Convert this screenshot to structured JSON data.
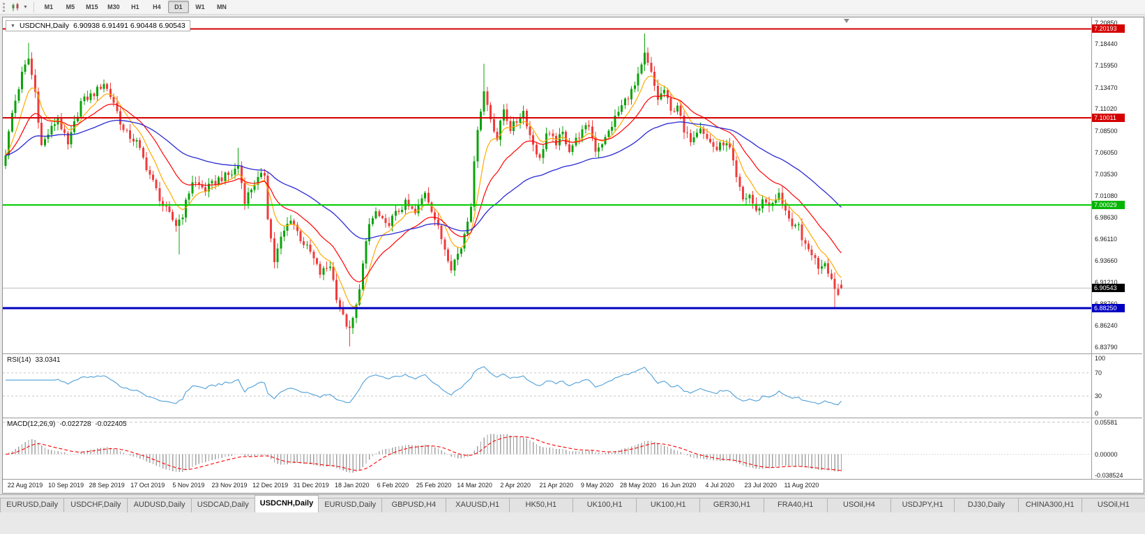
{
  "toolbar": {
    "timeframes": [
      "M1",
      "M5",
      "M15",
      "M30",
      "H1",
      "H4",
      "D1",
      "W1",
      "MN"
    ],
    "active_timeframe": "D1"
  },
  "chart": {
    "header": {
      "arrow": "▼",
      "title": "USDCNH,Daily",
      "ohlc": "6.90938 6.91491 6.90448 6.90543"
    },
    "colors": {
      "up": "#0aa30a",
      "down": "#f03c3c",
      "ma_fast": "#ffaa00",
      "ma_mid": "#ff0000",
      "ma_slow": "#2a2ad4"
    },
    "price_axis": {
      "min": 6.8307,
      "max": 7.2141,
      "labels": [
        "7.20850",
        "7.18440",
        "7.15950",
        "7.13470",
        "7.11020",
        "7.08500",
        "7.06050",
        "7.03530",
        "7.01080",
        "6.98630",
        "6.96110",
        "6.93660",
        "6.91210",
        "6.88760",
        "6.86240",
        "6.83790"
      ]
    },
    "markers": [
      {
        "name": "price-tag-resistance-upper",
        "text": "7.20193",
        "price": 7.20193,
        "bg": "#d40000",
        "fg": "#ffffff"
      },
      {
        "name": "price-tag-resistance",
        "text": "7.10011",
        "price": 7.10011,
        "bg": "#d40000",
        "fg": "#ffffff"
      },
      {
        "name": "price-tag-pivot",
        "text": "7.00029",
        "price": 7.00029,
        "bg": "#00b400",
        "fg": "#ffffff"
      },
      {
        "name": "price-tag-support",
        "text": "6.88250",
        "price": 6.8825,
        "bg": "#0000c0",
        "fg": "#ffffff"
      },
      {
        "name": "price-tag-bid",
        "text": "6.90543",
        "price": 6.90543,
        "bg": "#000000",
        "fg": "#ffffff"
      }
    ],
    "hlines": [
      {
        "price": 7.20193,
        "color": "#d40000",
        "width": 2
      },
      {
        "price": 7.10011,
        "color": "#d40000",
        "width": 2
      },
      {
        "price": 7.00029,
        "color": "#00cc00",
        "width": 2
      },
      {
        "price": 6.8825,
        "color": "#0000c0",
        "width": 3
      }
    ],
    "bid_line": {
      "price": 6.90543,
      "color": "#bcbcbc"
    }
  },
  "rsi": {
    "label": "RSI(14)",
    "value": "33.0341",
    "line_color": "#4f9fd8",
    "levels": [
      {
        "text": "100",
        "value": 100
      },
      {
        "text": "70",
        "value": 70
      },
      {
        "text": "30",
        "value": 30
      },
      {
        "text": "0",
        "value": 0
      }
    ],
    "dashed_levels": [
      70,
      30
    ]
  },
  "macd": {
    "label": "MACD(12,26,9)",
    "value_main": "-0.022728",
    "value_signal": "-0.022405",
    "bar_color": "#a2a2a2",
    "signal_color": "#ff0000",
    "axis": [
      {
        "text": "0.05581",
        "value": 0.05581
      },
      {
        "text": "0.00000",
        "value": 0
      },
      {
        "text": "-0.038524",
        "value": -0.038524
      }
    ],
    "range": {
      "max": 0.06,
      "min": -0.0405
    }
  },
  "date_axis": [
    "22 Aug 2019",
    "10 Sep 2019",
    "28 Sep 2019",
    "17 Oct 2019",
    "5 Nov 2019",
    "23 Nov 2019",
    "12 Dec 2019",
    "31 Dec 2019",
    "18 Jan 2020",
    "6 Feb 2020",
    "25 Feb 2020",
    "14 Mar 2020",
    "2 Apr 2020",
    "21 Apr 2020",
    "9 May 2020",
    "28 May 2020",
    "16 Jun 2020",
    "4 Jul 2020",
    "23 Jul 2020",
    "11 Aug 2020"
  ],
  "tabs": {
    "active_index": 4,
    "items": [
      "EURUSD,Daily",
      "USDCHF,Daily",
      "AUDUSD,Daily",
      "USDCAD,Daily",
      "USDCNH,Daily",
      "EURUSD,Daily",
      "GBPUSD,H4",
      "XAUUSD,H1",
      "HK50,H1",
      "UK100,H1",
      "UK100,H1",
      "GER30,H1",
      "FRA40,H1",
      "USOil,H4",
      "USDJPY,H1",
      "DJ30,Daily",
      "CHINA300,H1",
      "USOil,H1"
    ]
  },
  "chart_data": {
    "type": "candlestick",
    "symbol": "USDCNH",
    "period": "Daily",
    "visible_range": {
      "first_date": "22 Aug 2019",
      "last_date": "11 Aug 2020",
      "price_min": 6.8307,
      "price_max": 7.2141
    },
    "current_ohlc": {
      "open": 6.90938,
      "high": 6.91491,
      "low": 6.90448,
      "close": 6.90543
    },
    "num_candles": 256,
    "horizontal_levels": [
      7.20193,
      7.10011,
      7.00029,
      6.8825
    ],
    "anchors": [
      [
        0,
        7.06
      ],
      [
        2,
        7.105
      ],
      [
        5,
        7.15
      ],
      [
        7,
        7.168
      ],
      [
        9,
        7.13
      ],
      [
        11,
        7.068
      ],
      [
        13,
        7.082
      ],
      [
        16,
        7.1
      ],
      [
        19,
        7.068
      ],
      [
        23,
        7.118
      ],
      [
        27,
        7.128
      ],
      [
        30,
        7.14
      ],
      [
        33,
        7.118
      ],
      [
        36,
        7.085
      ],
      [
        40,
        7.072
      ],
      [
        44,
        7.035
      ],
      [
        48,
        7.0
      ],
      [
        52,
        6.978
      ],
      [
        54,
        6.99
      ],
      [
        57,
        7.028
      ],
      [
        61,
        7.018
      ],
      [
        65,
        7.03
      ],
      [
        69,
        7.036
      ],
      [
        71,
        7.046
      ],
      [
        73,
        7.006
      ],
      [
        76,
        7.026
      ],
      [
        79,
        7.036
      ],
      [
        80,
        6.988
      ],
      [
        82,
        6.936
      ],
      [
        84,
        6.962
      ],
      [
        87,
        6.986
      ],
      [
        90,
        6.962
      ],
      [
        93,
        6.946
      ],
      [
        96,
        6.922
      ],
      [
        99,
        6.932
      ],
      [
        101,
        6.896
      ],
      [
        103,
        6.872
      ],
      [
        105,
        6.856
      ],
      [
        107,
        6.884
      ],
      [
        109,
        6.932
      ],
      [
        111,
        6.978
      ],
      [
        113,
        6.992
      ],
      [
        116,
        6.976
      ],
      [
        119,
        6.99
      ],
      [
        122,
        7.002
      ],
      [
        125,
        6.99
      ],
      [
        128,
        7.016
      ],
      [
        130,
        6.996
      ],
      [
        133,
        6.962
      ],
      [
        136,
        6.93
      ],
      [
        139,
        6.952
      ],
      [
        142,
        7.002
      ],
      [
        144,
        7.09
      ],
      [
        146,
        7.13
      ],
      [
        148,
        7.1
      ],
      [
        150,
        7.076
      ],
      [
        152,
        7.11
      ],
      [
        154,
        7.088
      ],
      [
        156,
        7.096
      ],
      [
        158,
        7.108
      ],
      [
        160,
        7.08
      ],
      [
        163,
        7.052
      ],
      [
        165,
        7.082
      ],
      [
        168,
        7.072
      ],
      [
        170,
        7.082
      ],
      [
        172,
        7.064
      ],
      [
        175,
        7.08
      ],
      [
        178,
        7.092
      ],
      [
        180,
        7.064
      ],
      [
        183,
        7.076
      ],
      [
        186,
        7.1
      ],
      [
        189,
        7.12
      ],
      [
        192,
        7.136
      ],
      [
        194,
        7.158
      ],
      [
        195,
        7.172
      ],
      [
        197,
        7.15
      ],
      [
        199,
        7.122
      ],
      [
        201,
        7.132
      ],
      [
        203,
        7.106
      ],
      [
        205,
        7.116
      ],
      [
        207,
        7.082
      ],
      [
        209,
        7.076
      ],
      [
        212,
        7.092
      ],
      [
        214,
        7.076
      ],
      [
        217,
        7.064
      ],
      [
        219,
        7.072
      ],
      [
        221,
        7.064
      ],
      [
        223,
        7.03
      ],
      [
        225,
        7.006
      ],
      [
        227,
        7.012
      ],
      [
        229,
        6.992
      ],
      [
        231,
        7.006
      ],
      [
        234,
        7.0
      ],
      [
        236,
        7.012
      ],
      [
        238,
        6.996
      ],
      [
        240,
        6.972
      ],
      [
        242,
        6.976
      ],
      [
        244,
        6.952
      ],
      [
        246,
        6.946
      ],
      [
        248,
        6.93
      ],
      [
        250,
        6.936
      ],
      [
        252,
        6.916
      ],
      [
        254,
        6.898
      ],
      [
        255,
        6.90543
      ]
    ],
    "wick_overrides": [
      {
        "i": 7,
        "high": 7.186
      },
      {
        "i": 53,
        "low": 6.944
      },
      {
        "i": 71,
        "high": 7.066
      },
      {
        "i": 105,
        "low": 6.8385
      },
      {
        "i": 146,
        "high": 7.162
      },
      {
        "i": 195,
        "high": 7.1965
      },
      {
        "i": 253,
        "low": 6.8832
      }
    ],
    "indicators": {
      "ma_fast": {
        "type": "ema",
        "period": 8,
        "color": "#ffaa00"
      },
      "ma_mid": {
        "type": "ema",
        "period": 20,
        "color": "#ff0000"
      },
      "ma_slow": {
        "type": "ema",
        "period": 55,
        "color": "#2a2ad4"
      },
      "rsi": {
        "period": 14,
        "current": 33.0341
      },
      "macd": {
        "fast": 12,
        "slow": 26,
        "signal": 9,
        "current_main": -0.022728,
        "current_signal": -0.022405
      }
    }
  }
}
